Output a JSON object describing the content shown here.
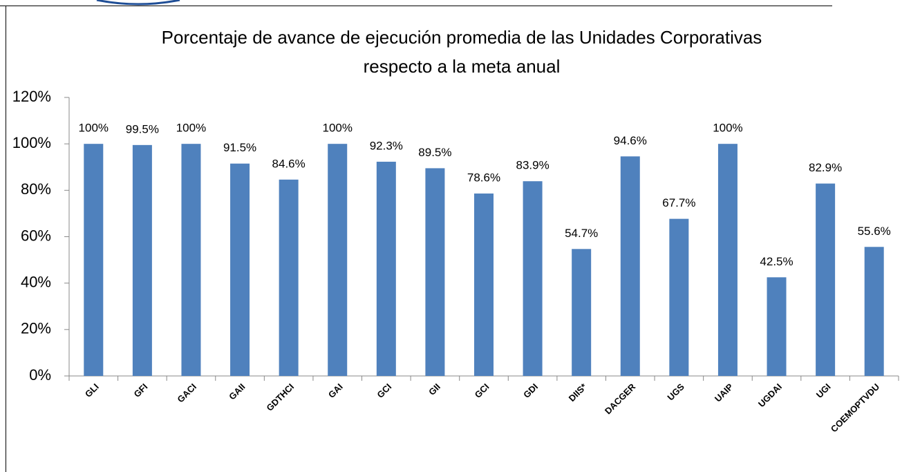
{
  "chart_data": {
    "type": "bar",
    "title": [
      "Porcentaje de avance de ejecución promedia de las Unidades Corporativas",
      "respecto a la meta anual"
    ],
    "categories": [
      "GLI",
      "GFI",
      "GACI",
      "GAII",
      "GDTHCI",
      "GAI",
      "GCI",
      "GII",
      "GCI",
      "GDI",
      "DIIS*",
      "DACGER",
      "UGS",
      "UAIP",
      "UGDAI",
      "UGI",
      "COEMOPTVDU"
    ],
    "values": [
      100,
      99.5,
      100,
      91.5,
      84.6,
      100,
      92.3,
      89.5,
      78.6,
      83.9,
      54.7,
      94.6,
      67.7,
      100,
      42.5,
      82.9,
      55.6
    ],
    "value_labels": [
      "100%",
      "99.5%",
      "100%",
      "91.5%",
      "84.6%",
      "100%",
      "92.3%",
      "89.5%",
      "78.6%",
      "83.9%",
      "54.7%",
      "94.6%",
      "67.7%",
      "100%",
      "42.5%",
      "82.9%",
      "55.6%"
    ],
    "color": "#4f81bd",
    "ylim": [
      0,
      120
    ],
    "yticks": [
      {
        "value": 0,
        "label": "0%"
      },
      {
        "value": 20,
        "label": "20%"
      },
      {
        "value": 40,
        "label": "40%"
      },
      {
        "value": 60,
        "label": "60%"
      },
      {
        "value": 80,
        "label": "80%"
      },
      {
        "value": 100,
        "label": "100%"
      },
      {
        "value": 120,
        "label": "120%"
      }
    ],
    "grid": false
  }
}
